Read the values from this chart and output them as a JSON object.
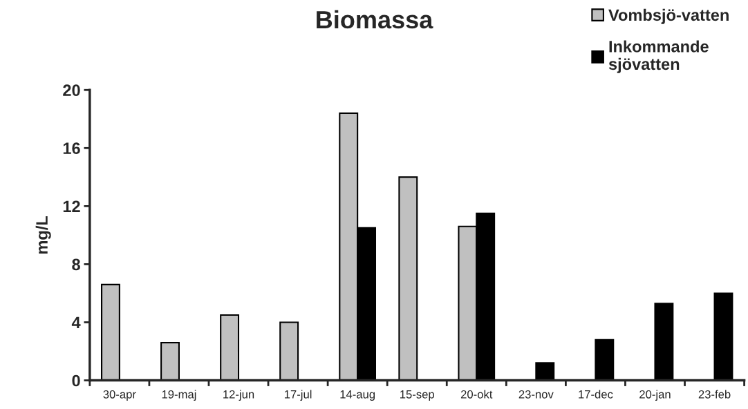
{
  "chart_data": {
    "type": "bar",
    "title": "Biomassa",
    "ylabel": "mg/L",
    "categories": [
      "30-apr",
      "19-maj",
      "12-jun",
      "17-jul",
      "14-aug",
      "15-sep",
      "20-okt",
      "23-nov",
      "17-dec",
      "20-jan",
      "23-feb"
    ],
    "series": [
      {
        "name": "Vombsjö-vatten",
        "color": "#c0c0c0",
        "values": [
          6.6,
          2.6,
          4.5,
          4.0,
          18.4,
          14.0,
          10.6,
          null,
          null,
          null,
          null
        ]
      },
      {
        "name": "Inkommande\nsjövatten",
        "color": "#000000",
        "values": [
          null,
          null,
          null,
          null,
          10.5,
          null,
          11.5,
          1.2,
          2.8,
          5.3,
          6.0
        ]
      }
    ],
    "ylim": [
      0,
      20
    ],
    "yticks": [
      0,
      4,
      8,
      12,
      16,
      20
    ],
    "grid": false,
    "legend": "top right"
  }
}
